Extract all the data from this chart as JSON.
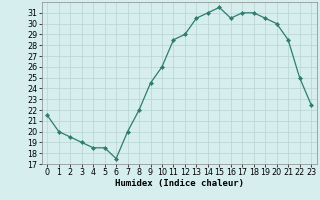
{
  "x": [
    0,
    1,
    2,
    3,
    4,
    5,
    6,
    7,
    8,
    9,
    10,
    11,
    12,
    13,
    14,
    15,
    16,
    17,
    18,
    19,
    20,
    21,
    22,
    23
  ],
  "y": [
    21.5,
    20.0,
    19.5,
    19.0,
    18.5,
    18.5,
    17.5,
    20.0,
    22.0,
    24.5,
    26.0,
    28.5,
    29.0,
    30.5,
    31.0,
    31.5,
    30.5,
    31.0,
    31.0,
    30.5,
    30.0,
    28.5,
    25.0,
    22.5
  ],
  "xlabel": "Humidex (Indice chaleur)",
  "ylim": [
    17,
    32
  ],
  "xlim": [
    -0.5,
    23.5
  ],
  "yticks": [
    17,
    18,
    19,
    20,
    21,
    22,
    23,
    24,
    25,
    26,
    27,
    28,
    29,
    30,
    31
  ],
  "xticks": [
    0,
    1,
    2,
    3,
    4,
    5,
    6,
    7,
    8,
    9,
    10,
    11,
    12,
    13,
    14,
    15,
    16,
    17,
    18,
    19,
    20,
    21,
    22,
    23
  ],
  "line_color": "#2e7d6e",
  "marker_color": "#2e7d6e",
  "bg_color": "#d6eeee",
  "grid_color": "#b8d4d4",
  "axis_fontsize": 6.5,
  "tick_fontsize": 5.8
}
